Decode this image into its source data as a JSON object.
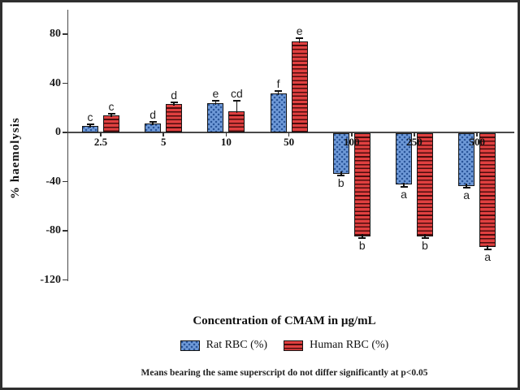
{
  "figure": {
    "background": "#ffffff",
    "border_color": "#2f2f2f",
    "axis_color": "#4a4a4a"
  },
  "chart_data": {
    "type": "bar",
    "title": "",
    "xlabel": "Concentration of CMAM in µg/mL",
    "ylabel": "% haemolysis",
    "footnote": "Means bearing the same superscript do not differ significantly at p<0.05",
    "categories": [
      "2.5",
      "5",
      "10",
      "50",
      "100",
      "250",
      "500"
    ],
    "series": [
      {
        "name": "Rat RBC (%)",
        "color": "#6f9ad8",
        "pattern": "dots",
        "values": [
          5,
          7,
          24,
          32,
          -33,
          -42,
          -43
        ],
        "errors": [
          1.5,
          1.5,
          1.5,
          1.5,
          2,
          2,
          2
        ],
        "letters": [
          "c",
          "d",
          "e",
          "f",
          "b",
          "a",
          "a"
        ]
      },
      {
        "name": "Human RBC (%)",
        "color": "#e04040",
        "pattern": "hlines",
        "values": [
          14,
          23,
          17,
          74,
          -84,
          -84,
          -93
        ],
        "errors": [
          1.5,
          1.5,
          9,
          3,
          2,
          2,
          2
        ],
        "letters": [
          "c",
          "d",
          "cd",
          "e",
          "b",
          "b",
          "a"
        ]
      }
    ],
    "yticks": [
      80,
      40,
      0,
      -40,
      -80,
      -120
    ],
    "ylim": [
      -120,
      100
    ],
    "grid": false,
    "legend_position": "bottom"
  }
}
